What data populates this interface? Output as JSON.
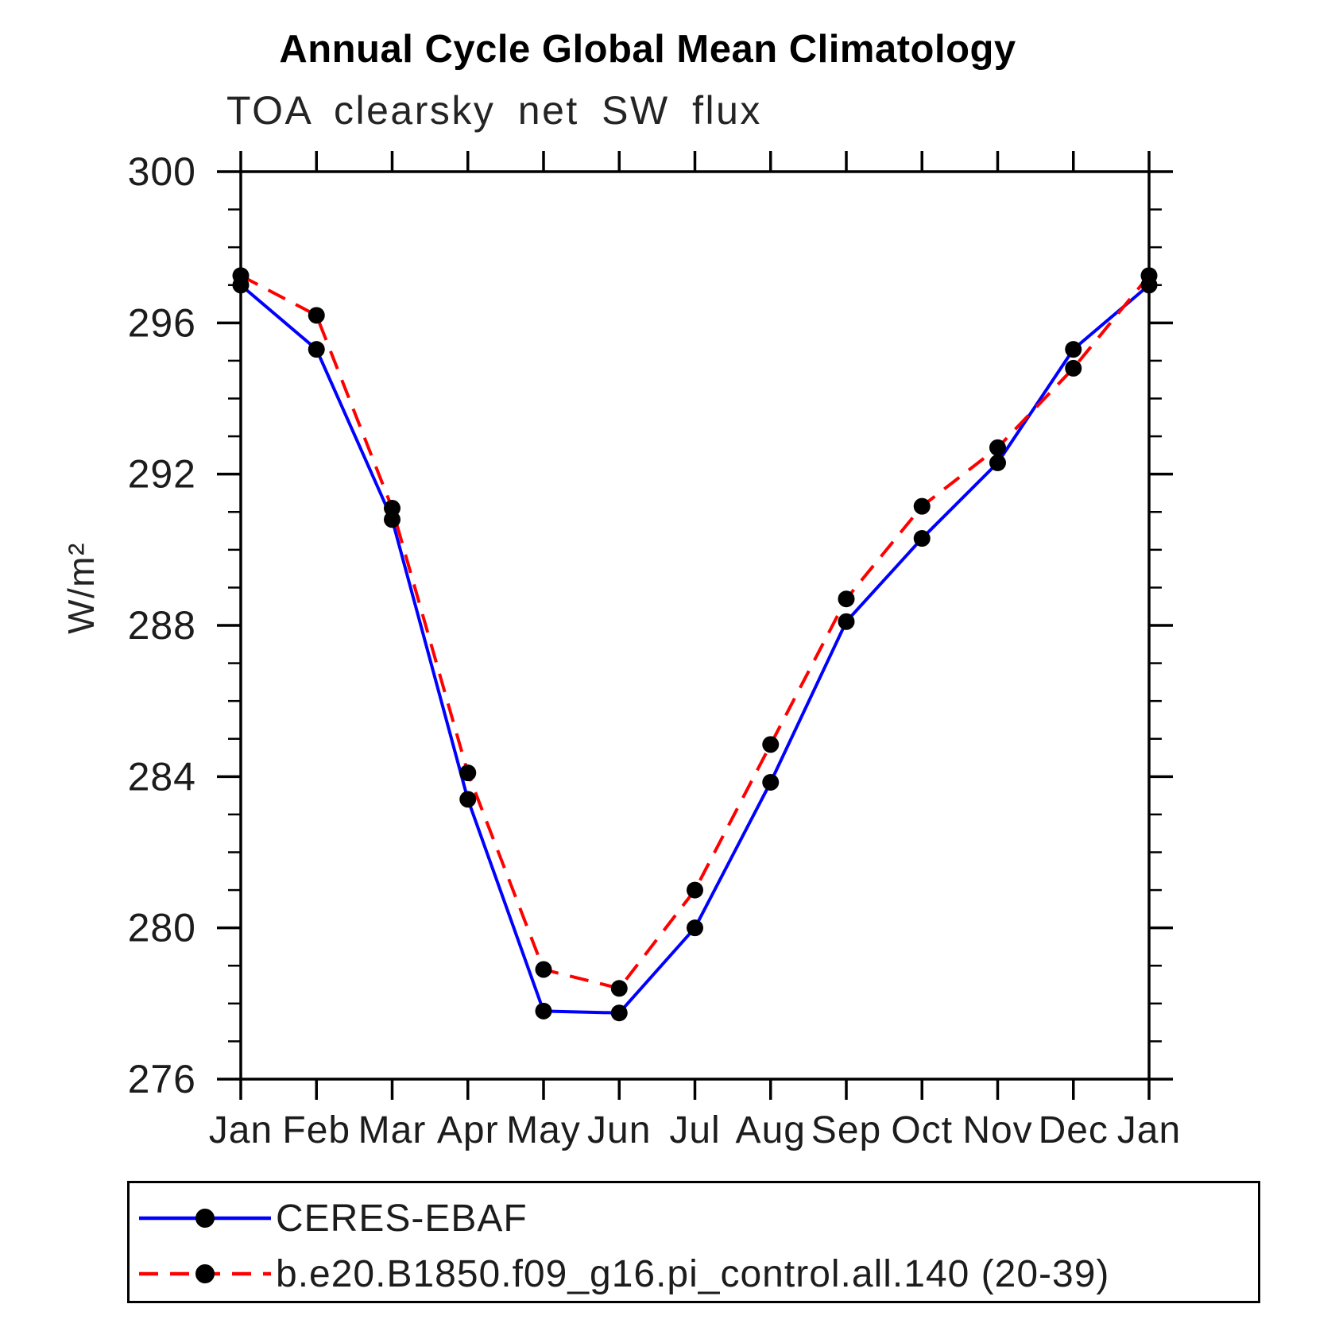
{
  "header": {
    "title": "Annual Cycle Global Mean Climatology",
    "subtitle": "TOA clearsky net SW flux"
  },
  "chart_data": {
    "type": "line",
    "title": "Annual Cycle Global Mean Climatology",
    "subtitle": "TOA clearsky net SW flux",
    "ylabel": "W/m²",
    "xlabel": "",
    "categories": [
      "Jan",
      "Feb",
      "Mar",
      "Apr",
      "May",
      "Jun",
      "Jul",
      "Aug",
      "Sep",
      "Oct",
      "Nov",
      "Dec",
      "Jan"
    ],
    "ylim": [
      276,
      300
    ],
    "y_major_ticks": [
      276,
      280,
      284,
      288,
      292,
      296,
      300
    ],
    "y_minor_step": 1,
    "grid": "off",
    "legend_position": "bottom",
    "axis_color": "#000000",
    "series": [
      {
        "name": "CERES-EBAF",
        "line_color": "#0000ff",
        "line_style": "solid",
        "marker": "circle",
        "marker_color": "#000000",
        "values": [
          297.0,
          295.3,
          290.8,
          283.4,
          277.8,
          277.75,
          280.0,
          283.85,
          288.1,
          290.3,
          292.3,
          295.3,
          297.0
        ]
      },
      {
        "name": "b.e20.B1850.f09_g16.pi_control.all.140 (20-39)",
        "line_color": "#ff0000",
        "line_style": "dashed",
        "marker": "circle",
        "marker_color": "#000000",
        "values": [
          297.25,
          296.2,
          291.1,
          284.1,
          278.9,
          278.4,
          281.0,
          284.85,
          288.7,
          291.15,
          292.7,
          294.8,
          297.25
        ]
      }
    ]
  }
}
